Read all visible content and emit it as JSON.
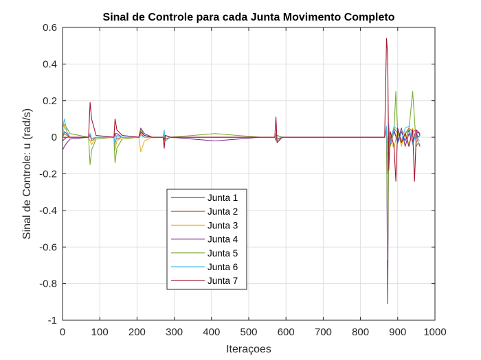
{
  "chart_data": {
    "type": "line",
    "title": "Sinal de Controle para cada Junta Movimento Completo",
    "xlabel": "Iteraçoes",
    "ylabel": "Sinal de Controle: u (rad/s)",
    "xlim": [
      0,
      1000
    ],
    "ylim": [
      -1,
      0.6
    ],
    "xticks": [
      0,
      100,
      200,
      300,
      400,
      500,
      600,
      700,
      800,
      900,
      1000
    ],
    "xtick_labels": [
      "0",
      "100",
      "200",
      "300",
      "400",
      "500",
      "600",
      "700",
      "800",
      "900",
      "1000"
    ],
    "yticks": [
      -1,
      -0.8,
      -0.6,
      -0.4,
      -0.2,
      0,
      0.2,
      0.4,
      0.6
    ],
    "ytick_labels": [
      "-1",
      "-0.8",
      "-0.6",
      "-0.4",
      "-0.2",
      "0",
      "0.2",
      "0.4",
      "0.6"
    ],
    "grid": true,
    "legend_position": "lower-left",
    "series": [
      {
        "name": "Junta 1",
        "color": "#0072BD",
        "x": [
          0,
          5,
          12,
          20,
          70,
          74,
          78,
          90,
          138,
          141,
          146,
          160,
          205,
          210,
          220,
          240,
          270,
          273,
          276,
          290,
          400,
          500,
          570,
          573,
          576,
          590,
          700,
          800,
          865,
          870,
          873,
          876,
          880,
          890,
          900,
          910,
          920,
          930,
          940,
          950,
          955,
          960
        ],
        "y": [
          0,
          0.03,
          0.02,
          0,
          0,
          0.02,
          -0.01,
          0,
          0,
          -0.03,
          0.01,
          0,
          0,
          0.03,
          0.01,
          0,
          0,
          0.01,
          -0.01,
          0,
          0,
          0,
          0,
          0.01,
          -0.01,
          0,
          0,
          0,
          0,
          0.05,
          -0.1,
          0.06,
          -0.02,
          0.04,
          -0.03,
          0.03,
          -0.02,
          0.04,
          -0.03,
          0.02,
          0,
          0.01
        ]
      },
      {
        "name": "Junta 2",
        "color": "#D95319",
        "x": [
          0,
          5,
          12,
          20,
          70,
          74,
          78,
          90,
          138,
          141,
          146,
          160,
          205,
          210,
          220,
          240,
          270,
          273,
          276,
          290,
          400,
          500,
          570,
          573,
          576,
          590,
          700,
          800,
          865,
          870,
          873,
          876,
          880,
          890,
          900,
          910,
          920,
          930,
          940,
          950,
          955,
          960
        ],
        "y": [
          0,
          0.02,
          0.01,
          0,
          0,
          0.01,
          -0.02,
          0,
          0,
          0.02,
          -0.01,
          0,
          0,
          0.02,
          0,
          0,
          0,
          0.01,
          -0.01,
          0,
          0,
          0,
          0,
          0.01,
          -0.01,
          0,
          0,
          0,
          0,
          0.03,
          -0.05,
          0.04,
          -0.01,
          0.05,
          0.02,
          -0.03,
          0.02,
          0.05,
          0.03,
          0.04,
          0.03,
          0.02
        ]
      },
      {
        "name": "Junta 3",
        "color": "#EDB120",
        "x": [
          0,
          5,
          12,
          20,
          70,
          74,
          78,
          90,
          138,
          141,
          146,
          160,
          205,
          210,
          220,
          240,
          270,
          273,
          276,
          290,
          400,
          500,
          570,
          573,
          576,
          590,
          700,
          800,
          865,
          870,
          873,
          876,
          880,
          890,
          900,
          910,
          920,
          930,
          940,
          950,
          955,
          960
        ],
        "y": [
          0,
          0.06,
          0.03,
          0,
          0,
          -0.02,
          -0.04,
          0,
          0,
          -0.07,
          -0.02,
          0,
          0,
          -0.08,
          -0.02,
          0,
          0,
          -0.02,
          0.01,
          0,
          0,
          0,
          0,
          -0.02,
          0.01,
          0,
          0,
          0,
          0,
          0.04,
          -0.08,
          0.05,
          -0.02,
          -0.06,
          0.04,
          -0.05,
          0.03,
          -0.04,
          0.05,
          -0.03,
          -0.01,
          -0.02
        ]
      },
      {
        "name": "Junta 4",
        "color": "#7E2F8E",
        "x": [
          0,
          5,
          12,
          20,
          70,
          74,
          78,
          90,
          138,
          141,
          146,
          160,
          205,
          210,
          220,
          240,
          270,
          273,
          276,
          290,
          350,
          410,
          470,
          530,
          570,
          573,
          576,
          590,
          700,
          800,
          865,
          870,
          873,
          876,
          880,
          890,
          900,
          910,
          920,
          930,
          940,
          950,
          955,
          960
        ],
        "y": [
          -0.07,
          -0.05,
          -0.03,
          -0.01,
          0,
          0.01,
          -0.01,
          0,
          0,
          0.02,
          0.02,
          0,
          0,
          0.05,
          0.02,
          0,
          0,
          -0.01,
          0.01,
          0,
          -0.01,
          -0.02,
          -0.01,
          0,
          0,
          -0.01,
          0.01,
          0,
          0,
          0,
          0,
          0.05,
          -0.91,
          0.06,
          -0.04,
          0.03,
          -0.02,
          0.05,
          -0.05,
          0.02,
          -0.02,
          0.04,
          -0.03,
          -0.05
        ]
      },
      {
        "name": "Junta 5",
        "color": "#77AC30",
        "x": [
          0,
          5,
          12,
          20,
          70,
          74,
          78,
          90,
          138,
          141,
          146,
          160,
          205,
          210,
          220,
          240,
          270,
          273,
          276,
          290,
          350,
          410,
          470,
          530,
          570,
          573,
          576,
          590,
          700,
          800,
          865,
          870,
          873,
          876,
          880,
          890,
          895,
          900,
          910,
          920,
          930,
          940,
          950,
          955,
          960
        ],
        "y": [
          0.05,
          0.07,
          0.05,
          0.02,
          0,
          -0.15,
          -0.07,
          -0.01,
          0,
          -0.14,
          -0.06,
          -0.01,
          0,
          0.04,
          0.01,
          0,
          0,
          0.03,
          -0.02,
          0,
          0.01,
          0.02,
          0.01,
          0,
          0,
          -0.02,
          0.01,
          0,
          0,
          0,
          0,
          0.03,
          -0.67,
          0.02,
          -0.05,
          0.04,
          0.25,
          0.02,
          -0.03,
          0.02,
          0.04,
          0.25,
          -0.05,
          -0.03,
          -0.04
        ]
      },
      {
        "name": "Junta 6",
        "color": "#4DBEEE",
        "x": [
          0,
          5,
          12,
          20,
          70,
          74,
          78,
          90,
          138,
          141,
          146,
          160,
          205,
          210,
          220,
          240,
          270,
          273,
          276,
          290,
          400,
          500,
          570,
          573,
          576,
          590,
          700,
          800,
          865,
          870,
          873,
          876,
          880,
          890,
          900,
          910,
          920,
          930,
          940,
          950,
          955,
          960
        ],
        "y": [
          0.04,
          0.1,
          0.03,
          0,
          0,
          0.02,
          -0.01,
          0,
          0,
          -0.04,
          0.01,
          0,
          0,
          0.01,
          0,
          0,
          0,
          0.04,
          -0.02,
          0,
          0,
          0,
          0,
          0.02,
          -0.02,
          0,
          0,
          0,
          0,
          0.06,
          -0.2,
          0.07,
          -0.03,
          0.06,
          0.04,
          -0.02,
          0.05,
          0.06,
          -0.04,
          0.02,
          -0.03,
          -0.04
        ]
      },
      {
        "name": "Junta 7",
        "color": "#A2142F",
        "x": [
          0,
          5,
          12,
          20,
          70,
          74,
          78,
          90,
          138,
          141,
          146,
          160,
          205,
          210,
          220,
          240,
          270,
          273,
          276,
          290,
          400,
          500,
          570,
          573,
          576,
          590,
          700,
          800,
          865,
          870,
          873,
          876,
          880,
          890,
          895,
          900,
          910,
          920,
          930,
          940,
          945,
          950,
          955,
          960
        ],
        "y": [
          -0.02,
          -0.01,
          0,
          0,
          0,
          0.19,
          0.1,
          0.01,
          0,
          0.1,
          0.04,
          0.01,
          0,
          0.03,
          0.01,
          0,
          0,
          -0.06,
          0.01,
          0,
          0,
          0,
          0,
          0.11,
          -0.03,
          0,
          0,
          0,
          0,
          0.54,
          0.45,
          -0.18,
          0.03,
          -0.05,
          -0.24,
          0.05,
          -0.03,
          0.02,
          -0.05,
          0.04,
          -0.24,
          0.02,
          0.03,
          0.01
        ]
      }
    ]
  }
}
